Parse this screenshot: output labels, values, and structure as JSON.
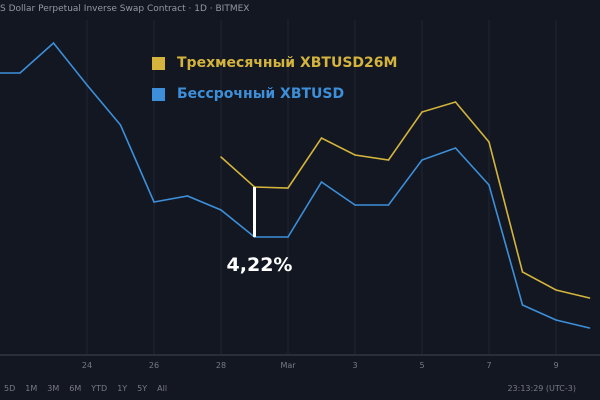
{
  "header": {
    "title": "S Dollar Perpetual Inverse Swap Contract · 1D · BITMEX"
  },
  "colors": {
    "background": "#131722",
    "quarterly": "#d4b43c",
    "perpetual": "#3d8fd9",
    "annotation": "#ffffff"
  },
  "chart_data": {
    "type": "line",
    "title": "",
    "xlabel": "",
    "ylabel": "",
    "x_tick_labels": [
      "24",
      "26",
      "28",
      "Mar",
      "3",
      "5",
      "7",
      "9"
    ],
    "x": [
      "Feb 22",
      "Feb 23",
      "Feb 24",
      "Feb 25",
      "Feb 26",
      "Feb 27",
      "Feb 28",
      "Feb 29",
      "Mar 1",
      "Mar 2",
      "Mar 3",
      "Mar 4",
      "Mar 5",
      "Mar 6",
      "Mar 7",
      "Mar 8",
      "Mar 9",
      "Mar 10"
    ],
    "y_axis_labels_visible": false,
    "grid": true,
    "legend_placement": "top-center",
    "series": [
      {
        "name": "Трехмесячный XBTUSD26M",
        "color": "#d4b43c",
        "values": [
          null,
          null,
          null,
          null,
          null,
          null,
          243,
          213,
          212,
          262,
          245,
          240,
          288,
          298,
          258,
          128,
          110,
          102
        ]
      },
      {
        "name": "Бессрочный XBTUSD",
        "color": "#3d8fd9",
        "values": [
          327,
          357,
          315,
          275,
          198,
          204,
          190,
          163,
          163,
          218,
          195,
          195,
          240,
          252,
          215,
          95,
          80,
          72
        ]
      }
    ],
    "annotation": {
      "label": "4,22%",
      "at": "Feb 29"
    }
  },
  "footer": {
    "ranges": [
      "5D",
      "1M",
      "3M",
      "6M",
      "YTD",
      "1Y",
      "5Y",
      "All"
    ],
    "clock": "23:13:29 (UTC-3)"
  }
}
